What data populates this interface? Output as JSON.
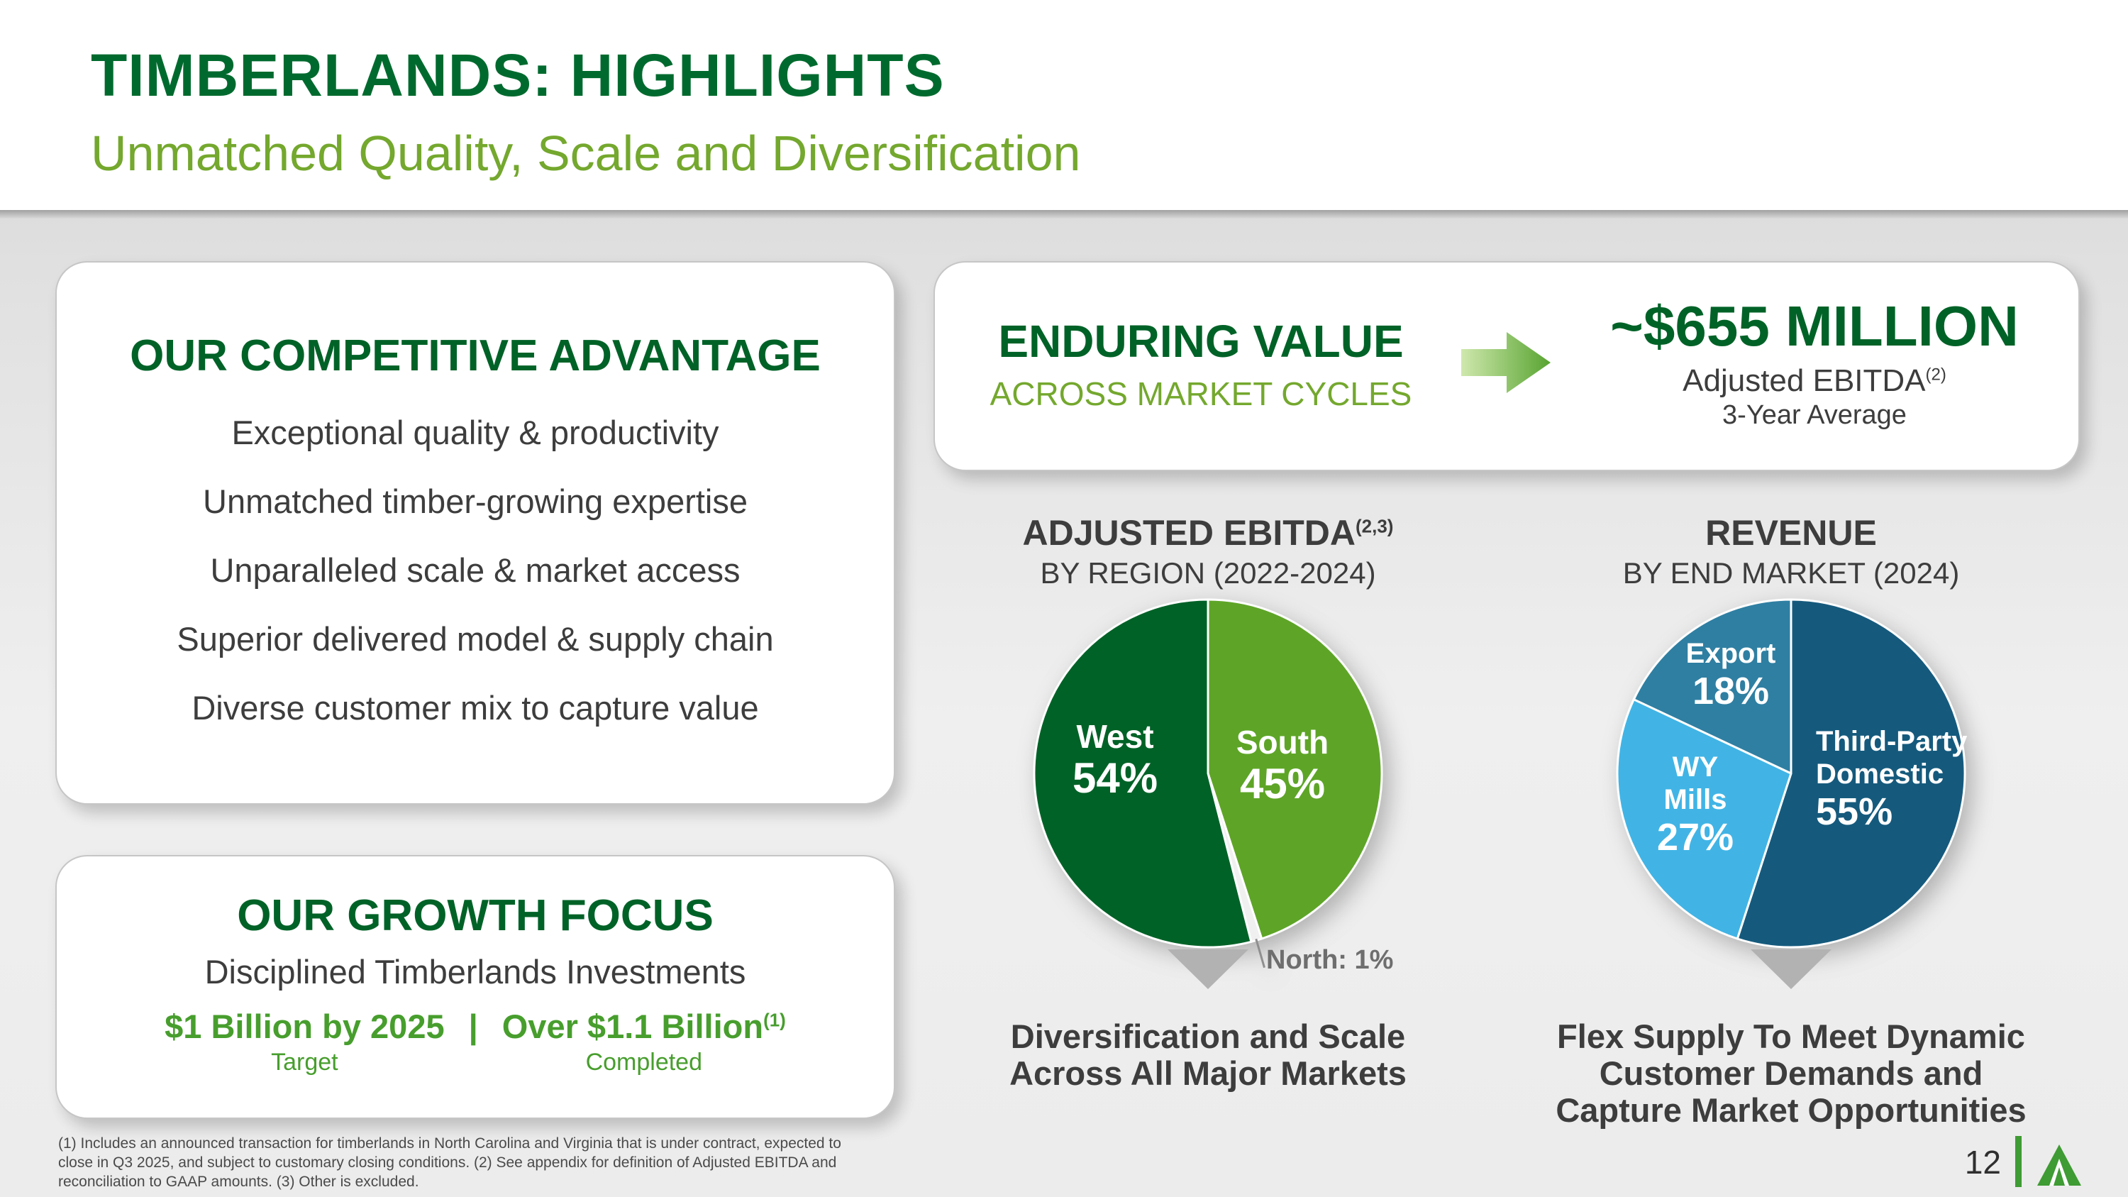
{
  "colors": {
    "dark_green": "#006227",
    "light_green": "#74a82e",
    "bright_green": "#479e2d",
    "text_dark": "#3d3d3d",
    "pie_west_green": "#006227",
    "pie_south_green": "#5ea527",
    "pie_third_party_navy": "#155a7d",
    "pie_wy_mills_blue": "#41b4e5",
    "pie_export_teal": "#2f7fa2"
  },
  "slide": {
    "title": "TIMBERLANDS: HIGHLIGHTS",
    "subtitle": "Unmatched Quality, Scale and Diversification",
    "page_number": "12",
    "footnote": "(1) Includes an announced transaction for timberlands in North Carolina and Virginia that is under contract, expected to close in Q3 2025, and subject to customary closing conditions. (2) See appendix for definition of Adjusted EBITDA and reconciliation to GAAP amounts. (3) Other is excluded."
  },
  "competitive_advantage": {
    "heading": "OUR COMPETITIVE ADVANTAGE",
    "items": [
      "Exceptional quality & productivity",
      "Unmatched timber-growing expertise",
      "Unparalleled scale & market access",
      "Superior delivered model & supply chain",
      "Diverse customer mix to capture value"
    ]
  },
  "growth_focus": {
    "heading": "OUR GROWTH FOCUS",
    "subheading": "Disciplined Timberlands Investments",
    "target_amount": "$1 Billion by 2025",
    "separator": "|",
    "completed_amount": "Over $1.1 Billion",
    "completed_sup": "(1)",
    "target_label": "Target",
    "completed_label": "Completed"
  },
  "enduring_value": {
    "heading": "ENDURING VALUE",
    "subheading": "ACROSS MARKET CYCLES",
    "amount": "~$655 MILLION",
    "amount_caption": "Adjusted EBITDA",
    "amount_caption_sup": "(2)",
    "amount_subcaption": "3-Year Average"
  },
  "chart_data": [
    {
      "type": "pie",
      "title": "ADJUSTED EBITDA",
      "title_sup": "(2,3)",
      "subtitle": "BY REGION (2022-2024)",
      "units": "percent",
      "start_angle": "12 o'clock, clockwise",
      "slices": [
        {
          "label": "South",
          "value": 45,
          "pct": "45%",
          "color": "#5ea527"
        },
        {
          "label": "North",
          "value": 1,
          "pct": "1%",
          "color": "#f0f0f0",
          "external_label": "North: 1%",
          "leader": true
        },
        {
          "label": "West",
          "value": 54,
          "pct": "54%",
          "color": "#006227"
        }
      ],
      "caption_lines": [
        "Diversification and Scale",
        "Across All Major Markets"
      ]
    },
    {
      "type": "pie",
      "title": "REVENUE",
      "title_sup": "",
      "subtitle": "BY END MARKET (2024)",
      "units": "percent",
      "start_angle": "12 o'clock, clockwise",
      "slices": [
        {
          "label": "Third-Party Domestic",
          "value": 55,
          "pct": "55%",
          "color": "#155a7d"
        },
        {
          "label": "WY Mills",
          "value": 27,
          "pct": "27%",
          "color": "#41b4e5"
        },
        {
          "label": "Export",
          "value": 18,
          "pct": "18%",
          "color": "#2f7fa2"
        }
      ],
      "caption_lines": [
        "Flex Supply To Meet Dynamic",
        "Customer Demands and",
        "Capture Market Opportunities"
      ]
    }
  ]
}
